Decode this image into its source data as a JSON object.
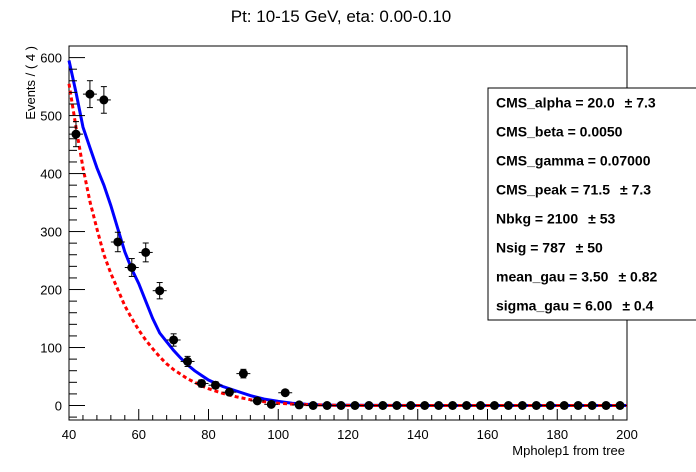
{
  "chart_data": {
    "type": "scatter",
    "title": "Pt: 10-15 GeV, eta: 0.00-0.10",
    "xlabel": "Mpholep1 from tree",
    "ylabel": "Events / ( 4 )",
    "xlim": [
      40,
      200
    ],
    "ylim": [
      -25,
      620
    ],
    "xticks": [
      "40",
      "60",
      "80",
      "100",
      "120",
      "140",
      "160",
      "180",
      "200"
    ],
    "yticks": [
      "0",
      "100",
      "200",
      "300",
      "400",
      "500",
      "600"
    ],
    "bin_width": 4,
    "points": {
      "x": [
        42,
        46,
        50,
        54,
        58,
        62,
        66,
        70,
        74,
        78,
        82,
        86,
        90,
        94,
        98,
        102,
        106,
        110,
        114,
        118,
        122,
        126,
        130,
        134,
        138,
        142,
        146,
        150,
        154,
        158,
        162,
        166,
        170,
        174,
        178,
        182,
        186,
        190,
        194,
        198
      ],
      "y": [
        468,
        537,
        527,
        282,
        238,
        264,
        198,
        113,
        76,
        38,
        35,
        23,
        55,
        8,
        2,
        22,
        1,
        0,
        0,
        0,
        0,
        0,
        0,
        0,
        0,
        0,
        0,
        0,
        0,
        0,
        0,
        0,
        0,
        0,
        0,
        0,
        0,
        0,
        0,
        0
      ]
    },
    "series": [
      {
        "color": "#0000ff",
        "style": "solid",
        "x": [
          40,
          42,
          44,
          46,
          48,
          50,
          52,
          54,
          56,
          58,
          60,
          62,
          64,
          66,
          68,
          70,
          72,
          74,
          76,
          78,
          80,
          84,
          88,
          92,
          96,
          100,
          104,
          108,
          112,
          116,
          120,
          130,
          140,
          160,
          180,
          200
        ],
        "y": [
          595,
          540,
          480,
          445,
          410,
          380,
          345,
          305,
          265,
          235,
          210,
          180,
          150,
          125,
          110,
          95,
          82,
          70,
          60,
          52,
          44,
          33,
          25,
          17,
          11,
          7,
          4,
          2,
          1,
          0.5,
          0.3,
          0.1,
          0,
          0,
          0,
          0
        ]
      },
      {
        "color": "#ff0000",
        "style": "dashed",
        "x": [
          40,
          42,
          44,
          46,
          48,
          50,
          52,
          54,
          56,
          58,
          60,
          62,
          64,
          66,
          68,
          70,
          72,
          74,
          76,
          78,
          80,
          84,
          88,
          92,
          96,
          100,
          104,
          108,
          112,
          116,
          120,
          130,
          140,
          160,
          180,
          200
        ],
        "y": [
          555,
          480,
          410,
          352,
          305,
          260,
          228,
          200,
          172,
          150,
          130,
          113,
          98,
          84,
          72,
          62,
          54,
          46,
          40,
          34,
          29,
          21,
          15,
          10,
          6.5,
          4,
          2.5,
          1.5,
          0.8,
          0.4,
          0.2,
          0.05,
          0,
          0,
          0,
          0
        ]
      }
    ],
    "stats_box": [
      {
        "label": "CMS_alpha = ",
        "value": "20.0",
        "error": "± 7.3"
      },
      {
        "label": "CMS_beta = ",
        "value": "0.0050",
        "error": ""
      },
      {
        "label": "CMS_gamma = ",
        "value": "0.07000",
        "error": ""
      },
      {
        "label": "CMS_peak = ",
        "value": "71.5",
        "error": "± 7.3"
      },
      {
        "label": "Nbkg = ",
        "value": "2100",
        "error": "± 53"
      },
      {
        "label": "Nsig = ",
        "value": "787",
        "error": "± 50"
      },
      {
        "label": "mean_gau = ",
        "value": "3.50",
        "error": "± 0.82"
      },
      {
        "label": "sigma_gau = ",
        "value": "6.00",
        "error": "± 0.4"
      }
    ],
    "grid": false
  }
}
